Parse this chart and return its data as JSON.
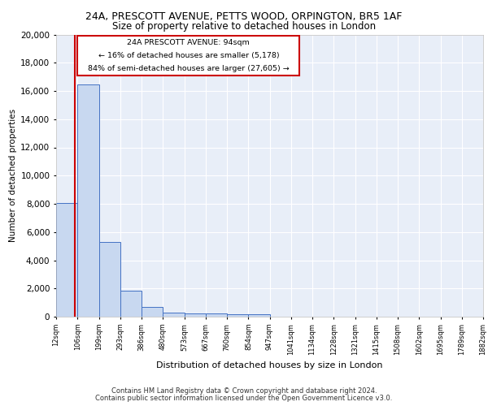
{
  "title1": "24A, PRESCOTT AVENUE, PETTS WOOD, ORPINGTON, BR5 1AF",
  "title2": "Size of property relative to detached houses in London",
  "xlabel": "Distribution of detached houses by size in London",
  "ylabel": "Number of detached properties",
  "footnote1": "Contains HM Land Registry data © Crown copyright and database right 2024.",
  "footnote2": "Contains public sector information licensed under the Open Government Licence v3.0.",
  "annotation_line1": "24A PRESCOTT AVENUE: 94sqm",
  "annotation_line2": "← 16% of detached houses are smaller (5,178)",
  "annotation_line3": "84% of semi-detached houses are larger (27,605) →",
  "property_sqm": 94,
  "bin_edges": [
    12,
    106,
    199,
    293,
    386,
    480,
    573,
    667,
    760,
    854,
    947,
    1041,
    1134,
    1228,
    1321,
    1415,
    1508,
    1602,
    1695,
    1789,
    1882
  ],
  "bar_heights": [
    8050,
    16450,
    5300,
    1850,
    700,
    300,
    230,
    210,
    190,
    170,
    0,
    0,
    0,
    0,
    0,
    0,
    0,
    0,
    0,
    0
  ],
  "bar_color": "#c8d8f0",
  "bar_edge_color": "#4472c4",
  "red_line_color": "#cc0000",
  "annotation_box_color": "#cc0000",
  "background_color": "#e8eef8",
  "grid_color": "#ffffff",
  "ylim": [
    0,
    20000
  ],
  "yticks": [
    0,
    2000,
    4000,
    6000,
    8000,
    10000,
    12000,
    14000,
    16000,
    18000,
    20000
  ]
}
